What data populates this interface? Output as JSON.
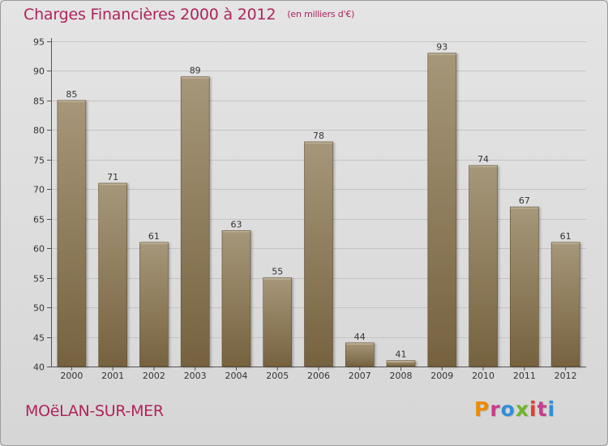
{
  "header": {
    "title": "Charges Financières 2000 à 2012",
    "unit": "(en milliers d'€)"
  },
  "footer": {
    "city": "MOëLAN-SUR-MER",
    "brand": "Proxiti"
  },
  "colors": {
    "title": "#b0245c",
    "bar_light": "#a6977a",
    "bar_dark": "#76623f",
    "grid": "#c4c4c4",
    "brand_letters": [
      "#f08a00",
      "#c83c8c",
      "#2f8fd8",
      "#6fb52c",
      "#e0402a",
      "#c83c8c",
      "#2f8fd8"
    ]
  },
  "chart_data": {
    "type": "bar",
    "categories": [
      "2000",
      "2001",
      "2002",
      "2003",
      "2004",
      "2005",
      "2006",
      "2007",
      "2008",
      "2009",
      "2010",
      "2011",
      "2012"
    ],
    "values": [
      85,
      71,
      61,
      89,
      63,
      55,
      78,
      44,
      41,
      93,
      74,
      67,
      61
    ],
    "title": "Charges Financières 2000 à 2012",
    "subtitle": "(en milliers d'€)",
    "ylim": [
      40,
      95
    ],
    "yticks": [
      40,
      45,
      50,
      55,
      60,
      65,
      70,
      75,
      80,
      85,
      90,
      95
    ],
    "grid": true,
    "data_labels": true
  }
}
